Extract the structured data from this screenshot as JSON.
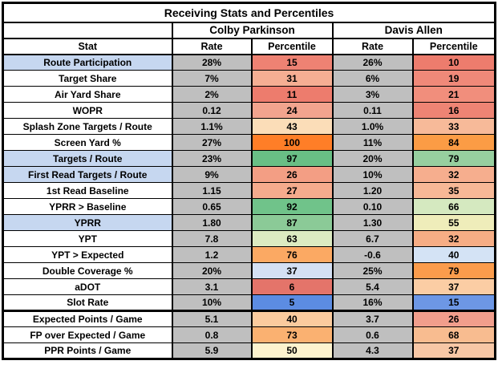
{
  "chart_data": {
    "type": "table",
    "title": "Receiving Stats and Percentiles",
    "players": [
      "Colby Parkinson",
      "Davis Allen"
    ],
    "columns": {
      "stat": "Stat",
      "rate": "Rate",
      "percentile": "Percentile"
    },
    "rows": [
      {
        "stat": "Route Participation",
        "label_bg": "#C6D7F0",
        "section_break": false,
        "p1": {
          "rate": "28%",
          "percentile": 15,
          "color": "#EE8273"
        },
        "p2": {
          "rate": "26%",
          "percentile": 10,
          "color": "#ED7C6D"
        }
      },
      {
        "stat": "Target Share",
        "label_bg": "#FFFFFF",
        "section_break": false,
        "p1": {
          "rate": "7%",
          "percentile": 31,
          "color": "#F5AE93"
        },
        "p2": {
          "rate": "6%",
          "percentile": 19,
          "color": "#F08979"
        }
      },
      {
        "stat": "Air Yard Share",
        "label_bg": "#FFFFFF",
        "section_break": false,
        "p1": {
          "rate": "2%",
          "percentile": 11,
          "color": "#ED7C6D"
        },
        "p2": {
          "rate": "3%",
          "percentile": 21,
          "color": "#F18E7C"
        }
      },
      {
        "stat": "WOPR",
        "label_bg": "#FFFFFF",
        "section_break": false,
        "p1": {
          "rate": "0.12",
          "percentile": 24,
          "color": "#F2A48E"
        },
        "p2": {
          "rate": "0.11",
          "percentile": 16,
          "color": "#EE8474"
        }
      },
      {
        "stat": "Splash Zone Targets / Route",
        "label_bg": "#FFFFFF",
        "section_break": false,
        "p1": {
          "rate": "1.1%",
          "percentile": 43,
          "color": "#FBDDB8"
        },
        "p2": {
          "rate": "1.0%",
          "percentile": 33,
          "color": "#F7BA99"
        }
      },
      {
        "stat": "Screen Yard %",
        "label_bg": "#FFFFFF",
        "section_break": false,
        "p1": {
          "rate": "27%",
          "percentile": 100,
          "color": "#FF7E27"
        },
        "p2": {
          "rate": "11%",
          "percentile": 84,
          "color": "#FB9C45"
        }
      },
      {
        "stat": "Targets / Route",
        "label_bg": "#C6D7F0",
        "section_break": false,
        "p1": {
          "rate": "23%",
          "percentile": 97,
          "color": "#69BF85"
        },
        "p2": {
          "rate": "20%",
          "percentile": 79,
          "color": "#97CF9F"
        }
      },
      {
        "stat": "First Read Targets / Route",
        "label_bg": "#C6D7F0",
        "section_break": false,
        "p1": {
          "rate": "9%",
          "percentile": 26,
          "color": "#F39E84"
        },
        "p2": {
          "rate": "10%",
          "percentile": 32,
          "color": "#F6AE8E"
        }
      },
      {
        "stat": "1st Read Baseline",
        "label_bg": "#FFFFFF",
        "section_break": false,
        "p1": {
          "rate": "1.15",
          "percentile": 27,
          "color": "#F5AB8D"
        },
        "p2": {
          "rate": "1.20",
          "percentile": 35,
          "color": "#F7B896"
        }
      },
      {
        "stat": "YPRR > Baseline",
        "label_bg": "#FFFFFF",
        "section_break": false,
        "p1": {
          "rate": "0.65",
          "percentile": 92,
          "color": "#70C38A"
        },
        "p2": {
          "rate": "0.10",
          "percentile": 66,
          "color": "#D5E9C0"
        }
      },
      {
        "stat": "YPRR",
        "label_bg": "#C6D7F0",
        "section_break": false,
        "p1": {
          "rate": "1.80",
          "percentile": 87,
          "color": "#8BCA97"
        },
        "p2": {
          "rate": "1.30",
          "percentile": 55,
          "color": "#EFEDBA"
        }
      },
      {
        "stat": "YPT",
        "label_bg": "#FFFFFF",
        "section_break": false,
        "p1": {
          "rate": "7.8",
          "percentile": 63,
          "color": "#DCEBC1"
        },
        "p2": {
          "rate": "6.7",
          "percentile": 32,
          "color": "#F6AD85"
        }
      },
      {
        "stat": "YPT > Expected",
        "label_bg": "#FFFFFF",
        "section_break": false,
        "p1": {
          "rate": "1.2",
          "percentile": 76,
          "color": "#FBA963"
        },
        "p2": {
          "rate": "-0.6",
          "percentile": 40,
          "color": "#D4E3F5"
        }
      },
      {
        "stat": "Double Coverage %",
        "label_bg": "#FFFFFF",
        "section_break": false,
        "p1": {
          "rate": "20%",
          "percentile": 37,
          "color": "#D4E0F3"
        },
        "p2": {
          "rate": "25%",
          "percentile": 79,
          "color": "#FB9C4C"
        }
      },
      {
        "stat": "aDOT",
        "label_bg": "#FFFFFF",
        "section_break": false,
        "p1": {
          "rate": "3.1",
          "percentile": 6,
          "color": "#E4746A"
        },
        "p2": {
          "rate": "5.4",
          "percentile": 37,
          "color": "#FBCDA4"
        }
      },
      {
        "stat": "Slot Rate",
        "label_bg": "#FFFFFF",
        "section_break": false,
        "p1": {
          "rate": "10%",
          "percentile": 5,
          "color": "#5C8CE2"
        },
        "p2": {
          "rate": "16%",
          "percentile": 15,
          "color": "#6D97E5"
        }
      },
      {
        "stat": "Expected Points / Game",
        "label_bg": "#FFFFFF",
        "section_break": true,
        "p1": {
          "rate": "5.1",
          "percentile": 40,
          "color": "#FBCB9E"
        },
        "p2": {
          "rate": "3.7",
          "percentile": 26,
          "color": "#F19E8C"
        }
      },
      {
        "stat": "FP over Expected / Game",
        "label_bg": "#FFFFFF",
        "section_break": false,
        "p1": {
          "rate": "0.8",
          "percentile": 73,
          "color": "#FAB171"
        },
        "p2": {
          "rate": "0.6",
          "percentile": 68,
          "color": "#F8BC90"
        }
      },
      {
        "stat": "PPR Points / Game",
        "label_bg": "#FFFFFF",
        "section_break": false,
        "p1": {
          "rate": "5.9",
          "percentile": 50,
          "color": "#FDF3CE"
        },
        "p2": {
          "rate": "4.3",
          "percentile": 37,
          "color": "#F7C7A6"
        }
      }
    ]
  },
  "colors": {
    "rate_cell_bg": "#BFBFBF",
    "stat_highlight_bg": "#C6D7F0",
    "stat_default_bg": "#FFFFFF",
    "border": "#000000",
    "header_bg": "#FFFFFF"
  }
}
